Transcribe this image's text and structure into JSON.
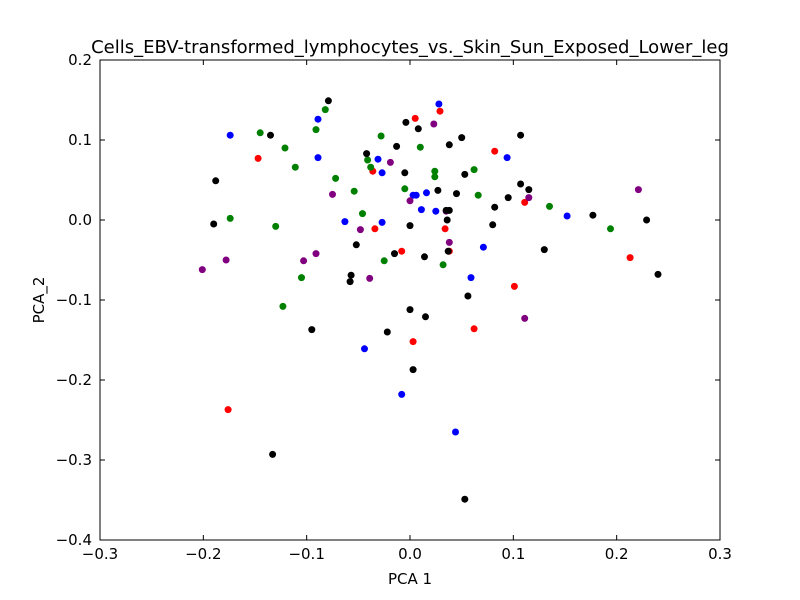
{
  "chart_data": {
    "type": "scatter",
    "title": "Cells_EBV-transformed_lymphocytes_vs._Skin_Sun_Exposed_Lower_leg",
    "xlabel": "PCA 1",
    "ylabel": "PCA_2",
    "xlim": [
      -0.3,
      0.3
    ],
    "ylim": [
      -0.4,
      0.2
    ],
    "xticks": [
      -0.3,
      -0.2,
      -0.1,
      0.0,
      0.1,
      0.2,
      0.3
    ],
    "xtick_labels": [
      "−0.3",
      "−0.2",
      "−0.1",
      "0.0",
      "0.1",
      "0.2",
      "0.3"
    ],
    "yticks": [
      -0.4,
      -0.3,
      -0.2,
      -0.1,
      0.0,
      0.1,
      0.2
    ],
    "ytick_labels": [
      "−0.4",
      "−0.3",
      "−0.2",
      "−0.1",
      "0.0",
      "0.1",
      "0.2"
    ],
    "grid": false,
    "legend": "none",
    "series": [
      {
        "color": "#0000ff",
        "points": [
          [
            -0.174,
            0.106
          ],
          [
            -0.089,
            0.126
          ],
          [
            -0.089,
            0.078
          ],
          [
            0.028,
            0.145
          ],
          [
            -0.031,
            0.076
          ],
          [
            -0.027,
            0.059
          ],
          [
            -0.063,
            -0.002
          ],
          [
            -0.027,
            -0.003
          ],
          [
            0.003,
            0.031
          ],
          [
            0.006,
            0.031
          ],
          [
            0.016,
            0.034
          ],
          [
            0.011,
            0.013
          ],
          [
            0.025,
            0.011
          ],
          [
            0.071,
            -0.034
          ],
          [
            0.094,
            0.078
          ],
          [
            0.152,
            0.005
          ],
          [
            0.059,
            -0.072
          ],
          [
            -0.044,
            -0.161
          ],
          [
            -0.008,
            -0.218
          ],
          [
            0.044,
            -0.265
          ]
        ]
      },
      {
        "color": "#ff0000",
        "points": [
          [
            -0.147,
            0.077
          ],
          [
            0.005,
            0.127
          ],
          [
            0.029,
            0.136
          ],
          [
            0.082,
            0.086
          ],
          [
            -0.036,
            0.061
          ],
          [
            -0.034,
            -0.011
          ],
          [
            0.034,
            -0.011
          ],
          [
            -0.008,
            -0.039
          ],
          [
            0.038,
            -0.039
          ],
          [
            0.111,
            0.022
          ],
          [
            0.101,
            -0.083
          ],
          [
            0.062,
            -0.136
          ],
          [
            0.003,
            -0.152
          ],
          [
            0.213,
            -0.047
          ],
          [
            -0.176,
            -0.237
          ]
        ]
      },
      {
        "color": "#008000",
        "points": [
          [
            -0.145,
            0.109
          ],
          [
            -0.121,
            0.09
          ],
          [
            -0.111,
            0.066
          ],
          [
            -0.091,
            0.113
          ],
          [
            -0.082,
            0.138
          ],
          [
            -0.072,
            0.052
          ],
          [
            -0.054,
            0.036
          ],
          [
            -0.028,
            0.105
          ],
          [
            -0.041,
            0.075
          ],
          [
            -0.038,
            0.066
          ],
          [
            0.01,
            0.091
          ],
          [
            -0.005,
            0.039
          ],
          [
            0.024,
            0.061
          ],
          [
            0.024,
            0.054
          ],
          [
            0.062,
            0.063
          ],
          [
            0.066,
            0.031
          ],
          [
            -0.046,
            0.008
          ],
          [
            -0.174,
            0.002
          ],
          [
            -0.13,
            -0.008
          ],
          [
            -0.105,
            -0.072
          ],
          [
            -0.123,
            -0.108
          ],
          [
            -0.025,
            -0.051
          ],
          [
            0.032,
            -0.056
          ],
          [
            0.135,
            0.017
          ],
          [
            0.194,
            -0.011
          ]
        ]
      },
      {
        "color": "#800080",
        "points": [
          [
            0.023,
            0.12
          ],
          [
            -0.019,
            0.072
          ],
          [
            -0.075,
            0.032
          ],
          [
            0.0,
            0.024
          ],
          [
            0.035,
            0.011
          ],
          [
            0.038,
            -0.028
          ],
          [
            -0.048,
            -0.012
          ],
          [
            -0.103,
            -0.051
          ],
          [
            -0.091,
            -0.042
          ],
          [
            -0.178,
            -0.05
          ],
          [
            -0.201,
            -0.062
          ],
          [
            -0.039,
            -0.073
          ],
          [
            0.115,
            0.028
          ],
          [
            0.111,
            -0.123
          ],
          [
            0.221,
            0.038
          ]
        ]
      },
      {
        "color": "#000000",
        "points": [
          [
            -0.079,
            0.149
          ],
          [
            -0.135,
            0.106
          ],
          [
            -0.042,
            0.083
          ],
          [
            -0.013,
            0.092
          ],
          [
            -0.004,
            0.122
          ],
          [
            0.008,
            0.114
          ],
          [
            0.038,
            0.094
          ],
          [
            0.05,
            0.103
          ],
          [
            0.107,
            0.106
          ],
          [
            -0.188,
            0.049
          ],
          [
            -0.19,
            -0.005
          ],
          [
            -0.005,
            0.059
          ],
          [
            0.053,
            0.057
          ],
          [
            0.027,
            0.037
          ],
          [
            0.045,
            0.033
          ],
          [
            0.082,
            0.016
          ],
          [
            0.095,
            0.028
          ],
          [
            0.107,
            0.045
          ],
          [
            0.115,
            0.038
          ],
          [
            0.035,
            0.012
          ],
          [
            0.038,
            0.012
          ],
          [
            0.0,
            -0.007
          ],
          [
            0.036,
            0.0
          ],
          [
            0.08,
            -0.006
          ],
          [
            0.177,
            0.006
          ],
          [
            0.229,
            0.0
          ],
          [
            0.13,
            -0.037
          ],
          [
            -0.052,
            -0.031
          ],
          [
            -0.057,
            -0.069
          ],
          [
            -0.058,
            -0.077
          ],
          [
            -0.015,
            -0.042
          ],
          [
            0.014,
            -0.046
          ],
          [
            0.037,
            -0.039
          ],
          [
            0.24,
            -0.068
          ],
          [
            0.056,
            -0.095
          ],
          [
            0.0,
            -0.112
          ],
          [
            0.015,
            -0.121
          ],
          [
            -0.095,
            -0.137
          ],
          [
            -0.022,
            -0.14
          ],
          [
            0.003,
            -0.187
          ],
          [
            -0.133,
            -0.293
          ],
          [
            0.053,
            -0.349
          ]
        ]
      }
    ]
  }
}
